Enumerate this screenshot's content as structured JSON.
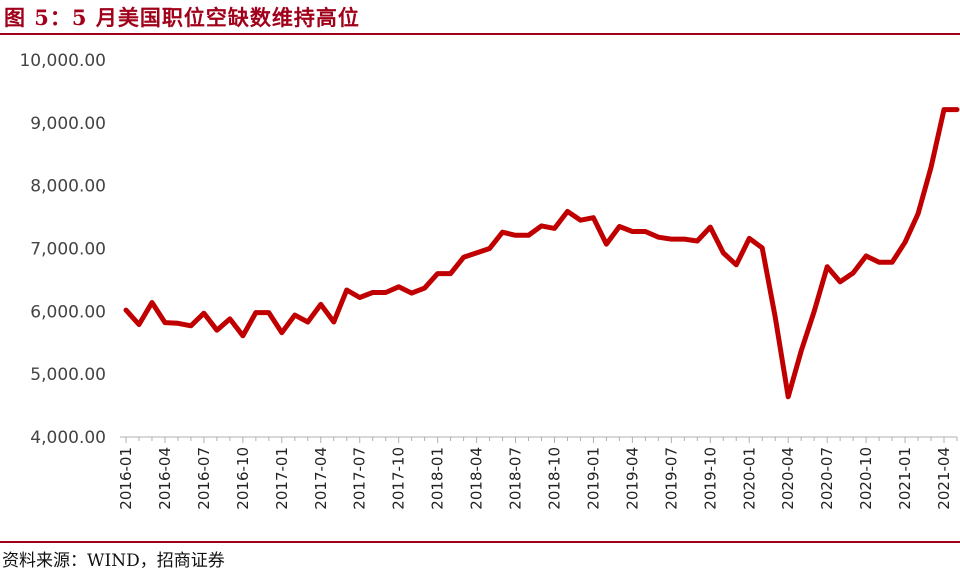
{
  "header": {
    "title": "图 5：5 月美国职位空缺数维持高位"
  },
  "footer": {
    "source": "资料来源：WIND，招商证券"
  },
  "chart_data": {
    "type": "line",
    "title": "图 5：5 月美国职位空缺数维持高位",
    "ylim": [
      4000,
      10000
    ],
    "yticks": [
      4000,
      5000,
      6000,
      7000,
      8000,
      9000,
      10000
    ],
    "ytick_labels": [
      "4,000.00",
      "5,000.00",
      "6,000.00",
      "7,000.00",
      "8,000.00",
      "9,000.00",
      "10,000.00"
    ],
    "xtick_labels": [
      "2016-01",
      "2016-04",
      "2016-07",
      "2016-10",
      "2017-01",
      "2017-04",
      "2017-07",
      "2017-10",
      "2018-01",
      "2018-04",
      "2018-07",
      "2018-10",
      "2019-01",
      "2019-04",
      "2019-07",
      "2019-10",
      "2020-01",
      "2020-04",
      "2020-07",
      "2020-10",
      "2021-01",
      "2021-04"
    ],
    "grid": false,
    "legend": "none",
    "line_color": "#c00000",
    "x": [
      "2016-01",
      "2016-02",
      "2016-03",
      "2016-04",
      "2016-05",
      "2016-06",
      "2016-07",
      "2016-08",
      "2016-09",
      "2016-10",
      "2016-11",
      "2016-12",
      "2017-01",
      "2017-02",
      "2017-03",
      "2017-04",
      "2017-05",
      "2017-06",
      "2017-07",
      "2017-08",
      "2017-09",
      "2017-10",
      "2017-11",
      "2017-12",
      "2018-01",
      "2018-02",
      "2018-03",
      "2018-04",
      "2018-05",
      "2018-06",
      "2018-07",
      "2018-08",
      "2018-09",
      "2018-10",
      "2018-11",
      "2018-12",
      "2019-01",
      "2019-02",
      "2019-03",
      "2019-04",
      "2019-05",
      "2019-06",
      "2019-07",
      "2019-08",
      "2019-09",
      "2019-10",
      "2019-11",
      "2019-12",
      "2020-01",
      "2020-02",
      "2020-03",
      "2020-04",
      "2020-05",
      "2020-06",
      "2020-07",
      "2020-08",
      "2020-09",
      "2020-10",
      "2020-11",
      "2020-12",
      "2021-01",
      "2021-02",
      "2021-03",
      "2021-04",
      "2021-05"
    ],
    "series": [
      {
        "values": [
          6020,
          5790,
          6140,
          5820,
          5810,
          5770,
          5970,
          5700,
          5880,
          5610,
          5980,
          5980,
          5660,
          5940,
          5830,
          6110,
          5830,
          6340,
          6220,
          6300,
          6300,
          6390,
          6290,
          6370,
          6600,
          6600,
          6860,
          6930,
          7000,
          7260,
          7210,
          7210,
          7360,
          7320,
          7590,
          7450,
          7490,
          7070,
          7350,
          7270,
          7270,
          7180,
          7150,
          7150,
          7120,
          7340,
          6930,
          6740,
          7160,
          7010,
          5910,
          4640,
          5370,
          6000,
          6710,
          6470,
          6610,
          6880,
          6780,
          6780,
          7100,
          7550,
          8290,
          9210,
          9210
        ]
      }
    ]
  }
}
